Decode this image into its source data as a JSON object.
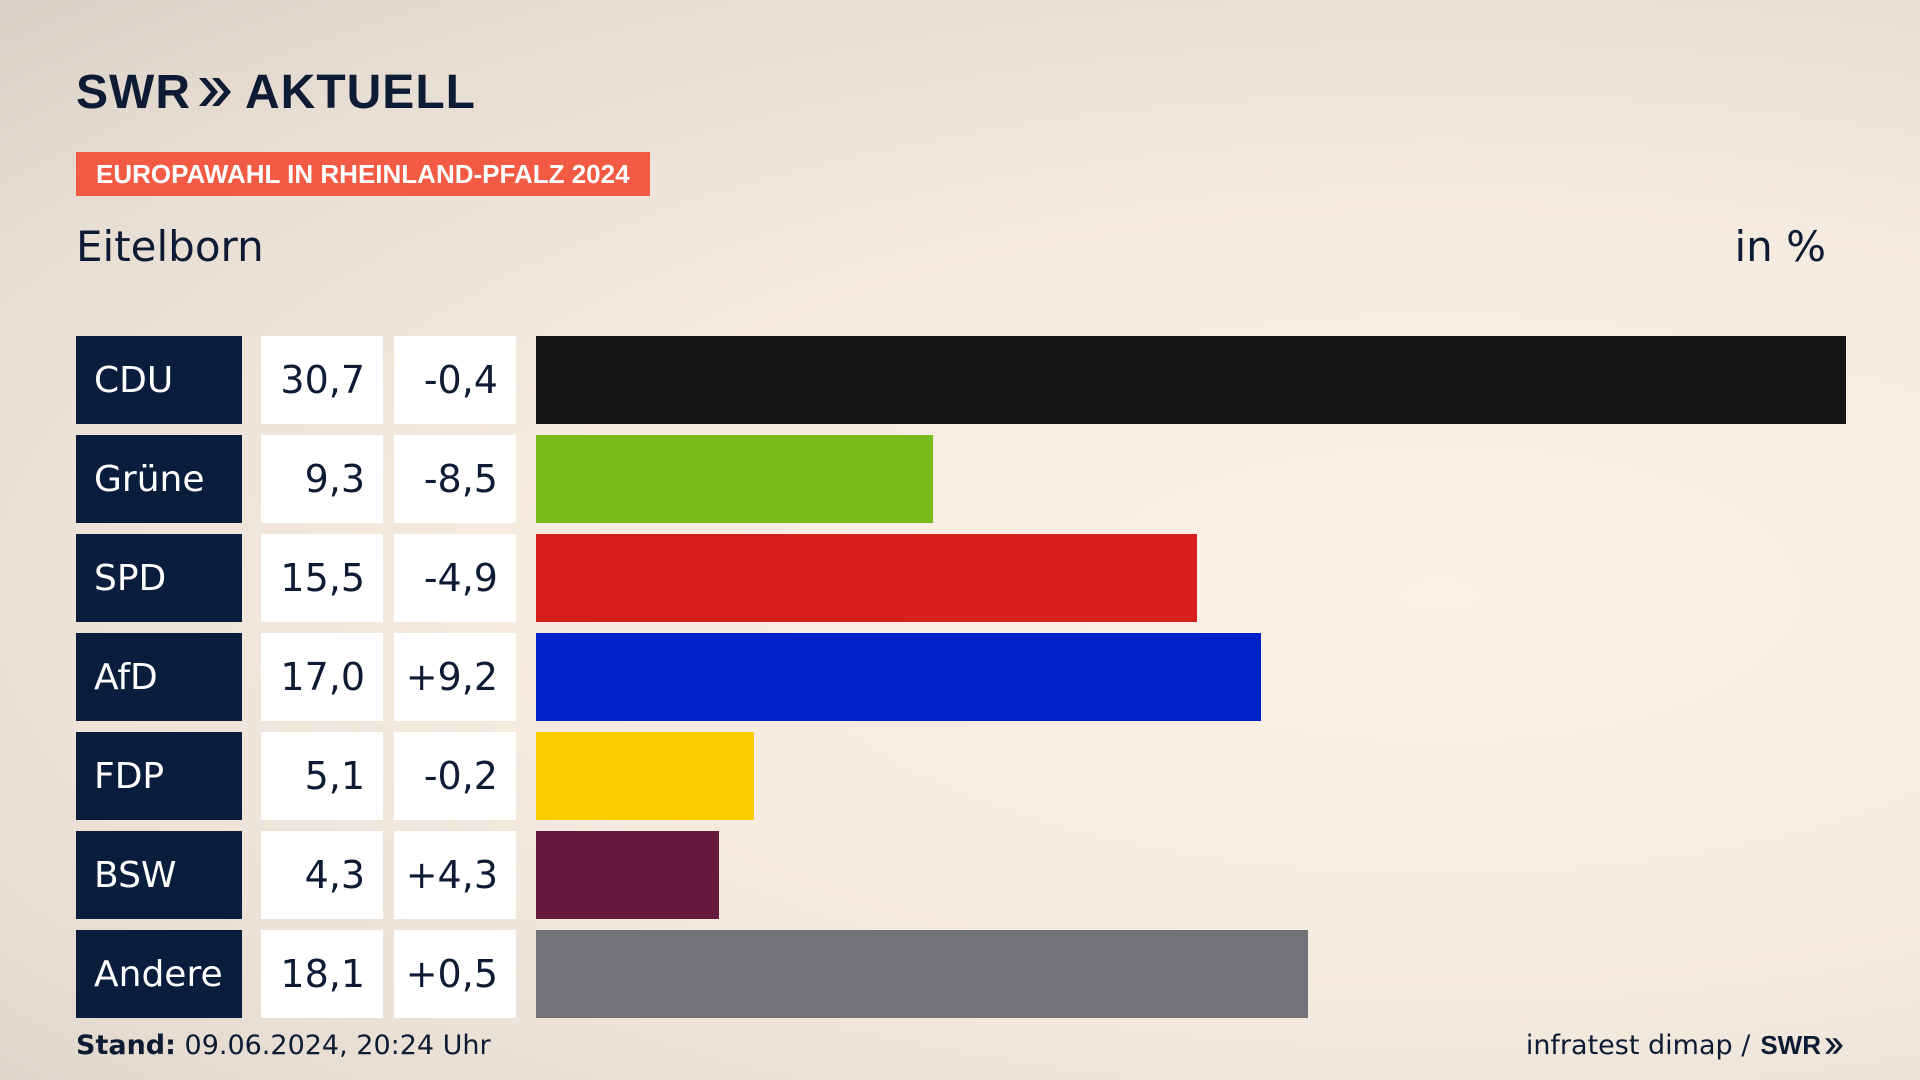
{
  "brand": {
    "logo_left": "SWR",
    "logo_right": "AKTUELL"
  },
  "tag": "EUROPAWAHL IN RHEINLAND-PFALZ 2024",
  "place": "Eitelborn",
  "unit": "in %",
  "colors": {
    "tag_bg": "#f25a43",
    "party_bg": "#0b1d3d"
  },
  "chart_data": {
    "type": "bar",
    "title": "Eitelborn",
    "unit": "in %",
    "categories": [
      "CDU",
      "Grüne",
      "SPD",
      "AfD",
      "FDP",
      "BSW",
      "Andere"
    ],
    "values": [
      30.7,
      9.3,
      15.5,
      17.0,
      5.1,
      4.3,
      18.1
    ],
    "value_labels": [
      "30,7",
      "9,3",
      "15,5",
      "17,0",
      "5,1",
      "4,3",
      "18,1"
    ],
    "changes": [
      "-0,4",
      "-8,5",
      "-4,9",
      "+9,2",
      "-0,2",
      "+4,3",
      "+0,5"
    ],
    "colors": [
      "#161616",
      "#78bc1b",
      "#d71f1d",
      "#0021c8",
      "#fdcc00",
      "#661a3d",
      "#727376"
    ],
    "xlim": [
      0,
      30.7
    ]
  },
  "footer": {
    "stand_label": "Stand:",
    "stand_value": "09.06.2024, 20:24 Uhr",
    "source": "infratest dimap /",
    "source_brand": "SWR"
  }
}
